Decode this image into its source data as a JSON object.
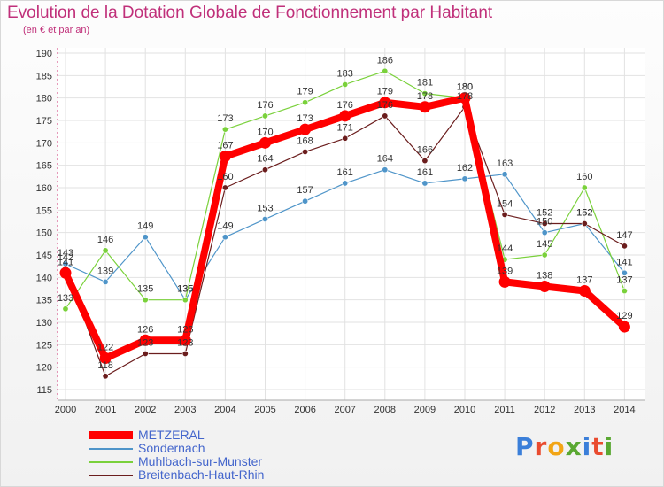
{
  "header": {
    "title": "Evolution de la Dotation Globale de Fonctionnement par Habitant",
    "subtitle": "(en € et par an)"
  },
  "logo": {
    "text": "Proxiti",
    "colors": [
      "#3b7fd9",
      "#e94b2f",
      "#f2a515",
      "#5aa832",
      "#3b7fd9",
      "#e94b2f",
      "#5aa832"
    ]
  },
  "chart_data": {
    "type": "line",
    "title": "Evolution de la Dotation Globale de Fonctionnement par Habitant",
    "subtitle": "(en € et par an)",
    "xlabel": "",
    "ylabel": "",
    "x": [
      "2000",
      "2001",
      "2002",
      "2003",
      "2004",
      "2005",
      "2006",
      "2007",
      "2008",
      "2009",
      "2010",
      "2011",
      "2012",
      "2013",
      "2014"
    ],
    "ylim": [
      115,
      190
    ],
    "yticks": [
      115,
      120,
      125,
      130,
      135,
      140,
      145,
      150,
      155,
      160,
      165,
      170,
      175,
      180,
      185,
      190
    ],
    "grid": true,
    "legend_position": "bottom-left",
    "series": [
      {
        "name": "METZERAL",
        "color": "#ff0000",
        "values": [
          141,
          122,
          126,
          126,
          167,
          170,
          173,
          176,
          179,
          178,
          180,
          139,
          138,
          137,
          129
        ]
      },
      {
        "name": "Sondernach",
        "color": "#4f95c9",
        "values": [
          143,
          139,
          149,
          135,
          149,
          153,
          157,
          161,
          164,
          161,
          162,
          163,
          150,
          152,
          141
        ]
      },
      {
        "name": "Muhlbach-sur-Munster",
        "color": "#7ad13b",
        "values": [
          133,
          146,
          135,
          135,
          173,
          176,
          179,
          183,
          186,
          181,
          180,
          144,
          145,
          160,
          137
        ]
      },
      {
        "name": "Breitenbach-Haut-Rhin",
        "color": "#6b1d1d",
        "values": [
          142,
          118,
          123,
          123,
          160,
          164,
          168,
          171,
          176,
          166,
          178,
          154,
          152,
          152,
          147
        ]
      }
    ]
  }
}
